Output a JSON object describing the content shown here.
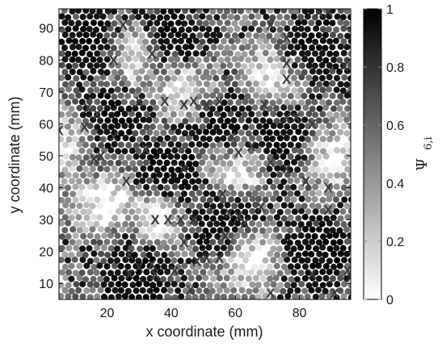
{
  "chart_data": {
    "type": "scatter",
    "title": "",
    "xlabel": "x coordinate (mm)",
    "ylabel": "y coordinate (mm)",
    "xlim": [
      5,
      96
    ],
    "ylim": [
      5,
      96
    ],
    "xticks": [
      20,
      40,
      60,
      80
    ],
    "yticks": [
      10,
      20,
      30,
      40,
      50,
      60,
      70,
      80,
      90
    ],
    "grid": false,
    "colorbar": {
      "label": "Ψ",
      "label_sub": "6,i",
      "range": [
        0,
        1
      ],
      "ticks": [
        "0",
        "0.2",
        "0.4",
        "0.6",
        "0.8",
        "1"
      ],
      "colormap": "gray-reversed",
      "color_low": "#ffffff",
      "color_high": "#000000"
    },
    "series": [
      {
        "marker": "circle",
        "lattice_spacing": 2.2,
        "value_range": [
          0,
          1
        ],
        "ordered_region_centers": [
          [
            40,
            88
          ],
          [
            85,
            82
          ],
          [
            20,
            60
          ],
          [
            55,
            60
          ],
          [
            75,
            55
          ],
          [
            55,
            30
          ],
          [
            30,
            15
          ],
          [
            85,
            20
          ],
          [
            40,
            45
          ],
          [
            15,
            85
          ]
        ],
        "disordered_region_centers": [
          [
            28,
            82
          ],
          [
            72,
            75
          ],
          [
            45,
            70
          ],
          [
            8,
            55
          ],
          [
            35,
            30
          ],
          [
            65,
            18
          ],
          [
            90,
            50
          ],
          [
            20,
            35
          ],
          [
            60,
            45
          ]
        ]
      },
      {
        "marker": "x",
        "name": "",
        "points": [
          [
            25,
            91
          ],
          [
            34,
            82
          ],
          [
            22,
            80
          ],
          [
            71,
            91
          ],
          [
            86,
            95
          ],
          [
            89,
            95
          ],
          [
            76,
            87
          ],
          [
            76,
            79
          ],
          [
            76,
            74
          ],
          [
            94,
            78
          ],
          [
            30,
            67
          ],
          [
            38,
            67
          ],
          [
            44,
            66
          ],
          [
            47,
            67
          ],
          [
            51,
            66
          ],
          [
            55,
            67
          ],
          [
            69,
            66
          ],
          [
            14,
            65
          ],
          [
            17,
            63
          ],
          [
            13,
            59
          ],
          [
            5,
            58
          ],
          [
            22,
            56
          ],
          [
            59,
            56
          ],
          [
            76,
            62
          ],
          [
            79,
            62
          ],
          [
            84,
            60
          ],
          [
            32,
            52
          ],
          [
            61,
            51
          ],
          [
            65,
            53
          ],
          [
            18,
            50
          ],
          [
            16,
            49
          ],
          [
            44,
            46
          ],
          [
            71,
            48
          ],
          [
            76,
            46
          ],
          [
            68,
            34
          ],
          [
            89,
            40
          ],
          [
            26,
            42
          ],
          [
            56,
            38
          ],
          [
            82,
            42
          ],
          [
            35,
            30
          ],
          [
            39,
            30
          ],
          [
            43,
            30
          ],
          [
            47,
            30
          ],
          [
            58,
            32
          ],
          [
            61,
            31
          ],
          [
            63,
            29
          ],
          [
            89,
            33
          ],
          [
            27,
            19
          ],
          [
            44,
            23
          ],
          [
            57,
            25
          ],
          [
            51,
            18
          ],
          [
            55,
            18
          ],
          [
            48,
            17
          ],
          [
            30,
            15
          ],
          [
            34,
            16
          ],
          [
            35,
            13
          ],
          [
            41,
            14
          ],
          [
            27,
            13
          ],
          [
            84,
            13
          ],
          [
            46,
            8
          ],
          [
            71,
            7
          ],
          [
            91,
            7
          ],
          [
            95,
            14
          ],
          [
            96,
            12
          ]
        ]
      }
    ]
  }
}
